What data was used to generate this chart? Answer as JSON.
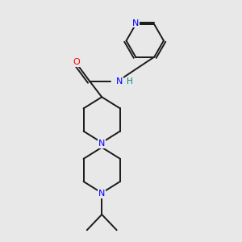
{
  "bg_color": "#e8e8e8",
  "bond_color": "#1a1a1a",
  "N_color": "#0000ff",
  "O_color": "#ff0000",
  "NH_color": "#008080",
  "line_width": 1.4,
  "figsize": [
    3.0,
    3.0
  ],
  "dpi": 100,
  "xlim": [
    0,
    10
  ],
  "ylim": [
    0,
    10
  ]
}
